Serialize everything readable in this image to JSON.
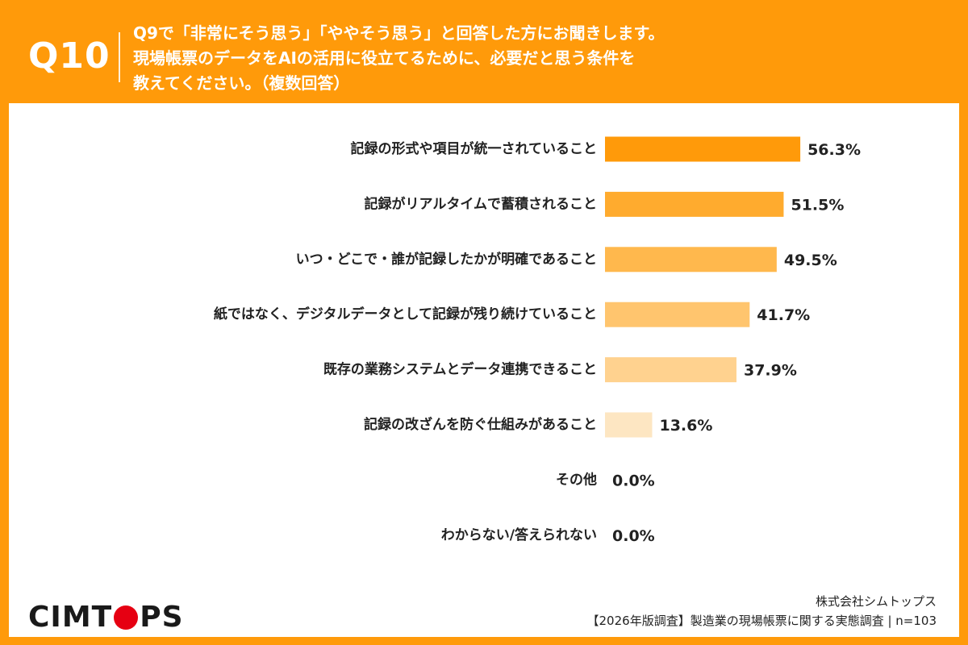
{
  "header": {
    "qnum": "Q10",
    "lines": [
      "Q9で「非常にそう思う」「ややそう思う」と回答した方にお聞きします。",
      "現場帳票のデータをAIの活用に役立てるために、必要だと思う条件を",
      "教えてください。（複数回答）"
    ]
  },
  "chart_data": {
    "type": "bar",
    "orientation": "horizontal",
    "categories": [
      "記録の形式や項目が統一されていること",
      "記録がリアルタイムで蓄積されること",
      "いつ・どこで・誰が記録したかが明確であること",
      "紙ではなく、デジタルデータとして記録が残り続けていること",
      "既存の業務システムとデータ連携できること",
      "記録の改ざんを防ぐ仕組みがあること",
      "その他",
      "わからない/答えられない"
    ],
    "values": [
      56.3,
      51.5,
      49.5,
      41.7,
      37.9,
      13.6,
      0.0,
      0.0
    ],
    "value_labels": [
      "56.3%",
      "51.5%",
      "49.5%",
      "41.7%",
      "37.9%",
      "13.6%",
      "0.0%",
      "0.0%"
    ],
    "colors": [
      "#ff9a0a",
      "#ffab2e",
      "#ffb84d",
      "#ffc56e",
      "#ffd28f",
      "#fde6c2",
      "#fde6c2",
      "#fde6c2"
    ],
    "unit": "%"
  },
  "footer": {
    "logo_left": "CIMT",
    "logo_right": "PS",
    "company": "株式会社シムトップス",
    "survey": "【2026年版調査】製造業の現場帳票に関する実態調査 | n=103"
  }
}
